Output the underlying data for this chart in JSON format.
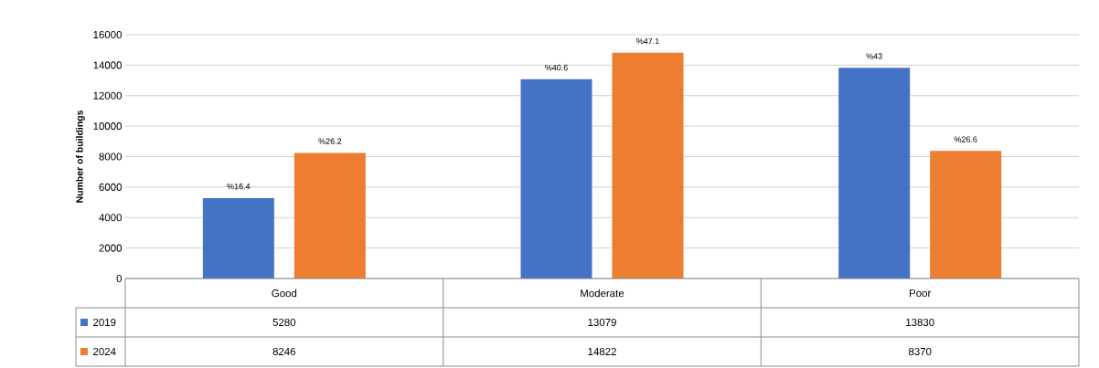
{
  "chart_data": {
    "type": "bar",
    "ylabel": "Number of buildings",
    "categories": [
      "Good",
      "Moderate",
      "Poor"
    ],
    "series": [
      {
        "name": "2019",
        "color": "#4472c4",
        "values": [
          5280,
          13079,
          13830
        ],
        "value_labels": [
          "5280",
          "13079",
          "13830"
        ]
      },
      {
        "name": "2024",
        "color": "#ed7d31",
        "values": [
          8246,
          14822,
          8370
        ],
        "value_labels": [
          "8246",
          "14822",
          "8370"
        ]
      }
    ],
    "annotations": [
      "%16.4",
      "%40.6",
      "%43",
      "%26.2",
      "%47.1",
      "%26.6"
    ],
    "legend": "bottom left",
    "ylim": [
      0,
      16000
    ],
    "yticks": [
      0,
      2000,
      4000,
      6000,
      8000,
      10000,
      12000,
      14000,
      16000
    ],
    "grid": "y"
  }
}
